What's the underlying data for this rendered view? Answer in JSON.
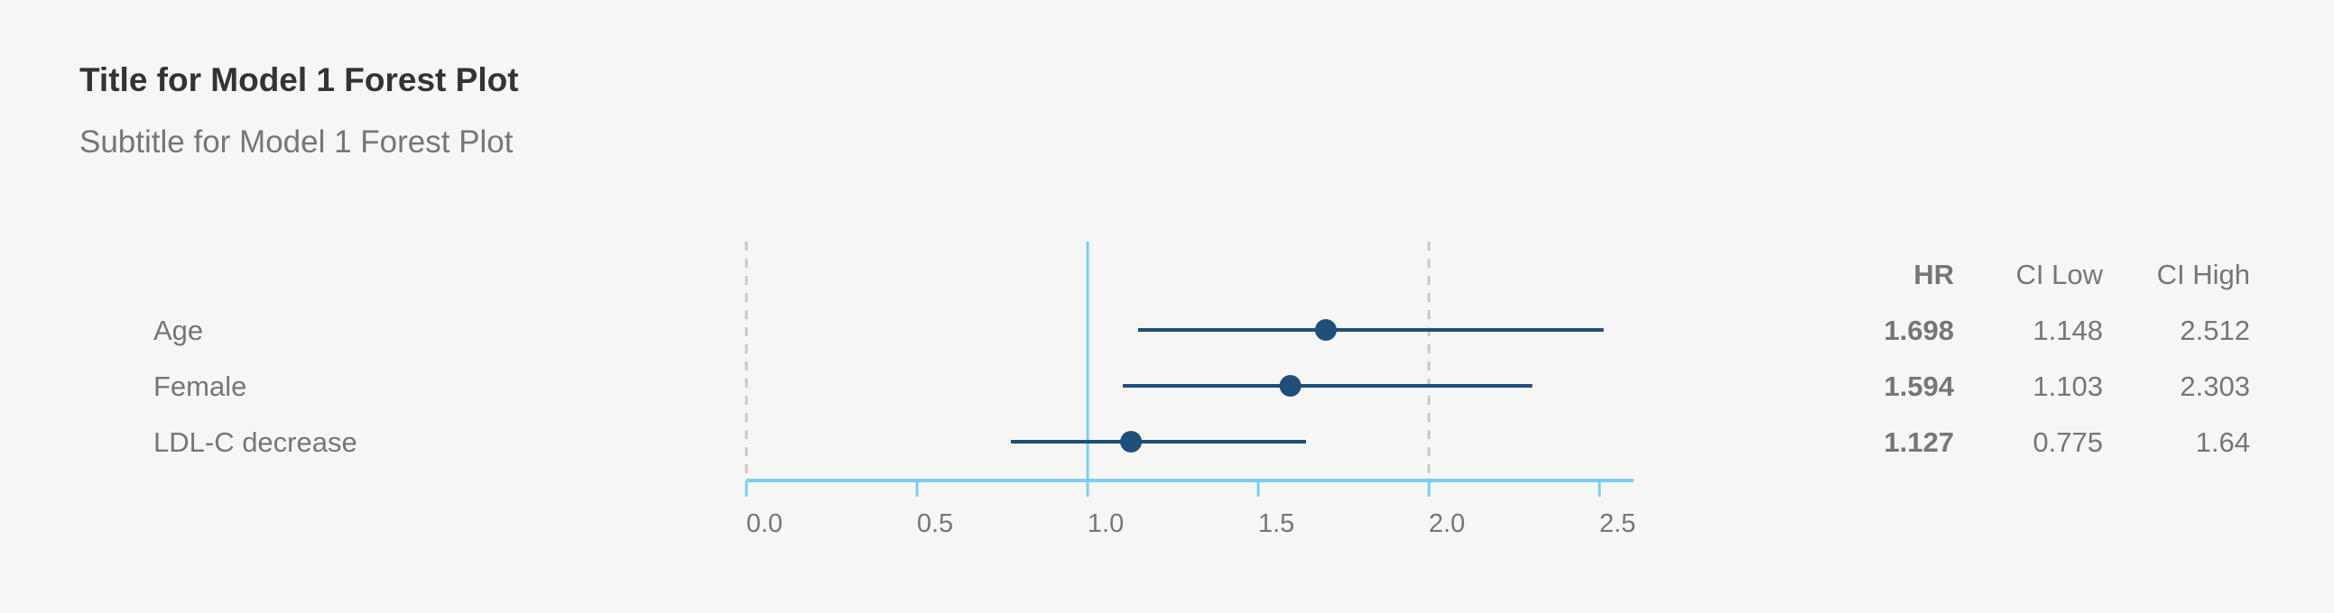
{
  "title": "Title for Model 1 Forest Plot",
  "subtitle": "Subtitle for Model 1 Forest Plot",
  "colors": {
    "background": "#f6f6f6",
    "point": "#1f4e79",
    "axis": "#7ccdf2",
    "reference_line": "#7ccdf2",
    "grid": "#c8c8c8",
    "label_text": "#767676",
    "value_text": "#767676"
  },
  "chart_data": {
    "type": "forest",
    "title": "Title for Model 1 Forest Plot",
    "subtitle": "Subtitle for Model 1 Forest Plot",
    "xlim": [
      0,
      2.6
    ],
    "x_ticks": [
      "0.0",
      "0.5",
      "1.0",
      "1.5",
      "2.0",
      "2.5"
    ],
    "x_tick_values": [
      0,
      0.5,
      1.0,
      1.5,
      2.0,
      2.5
    ],
    "reference_value": 1.0,
    "dashed_gridlines": [
      0,
      2.0
    ],
    "columns": [
      "HR",
      "CI Low",
      "CI High"
    ],
    "rows": [
      {
        "label": "Age",
        "hr": 1.698,
        "ci_low": 1.148,
        "ci_high": 2.512,
        "hr_text": "1.698",
        "ci_low_text": "1.148",
        "ci_high_text": "2.512"
      },
      {
        "label": "Female",
        "hr": 1.594,
        "ci_low": 1.103,
        "ci_high": 2.303,
        "hr_text": "1.594",
        "ci_low_text": "1.103",
        "ci_high_text": "2.303"
      },
      {
        "label": "LDL-C decrease",
        "hr": 1.127,
        "ci_low": 0.775,
        "ci_high": 1.64,
        "hr_text": "1.127",
        "ci_low_text": "0.775",
        "ci_high_text": "1.64"
      }
    ]
  }
}
